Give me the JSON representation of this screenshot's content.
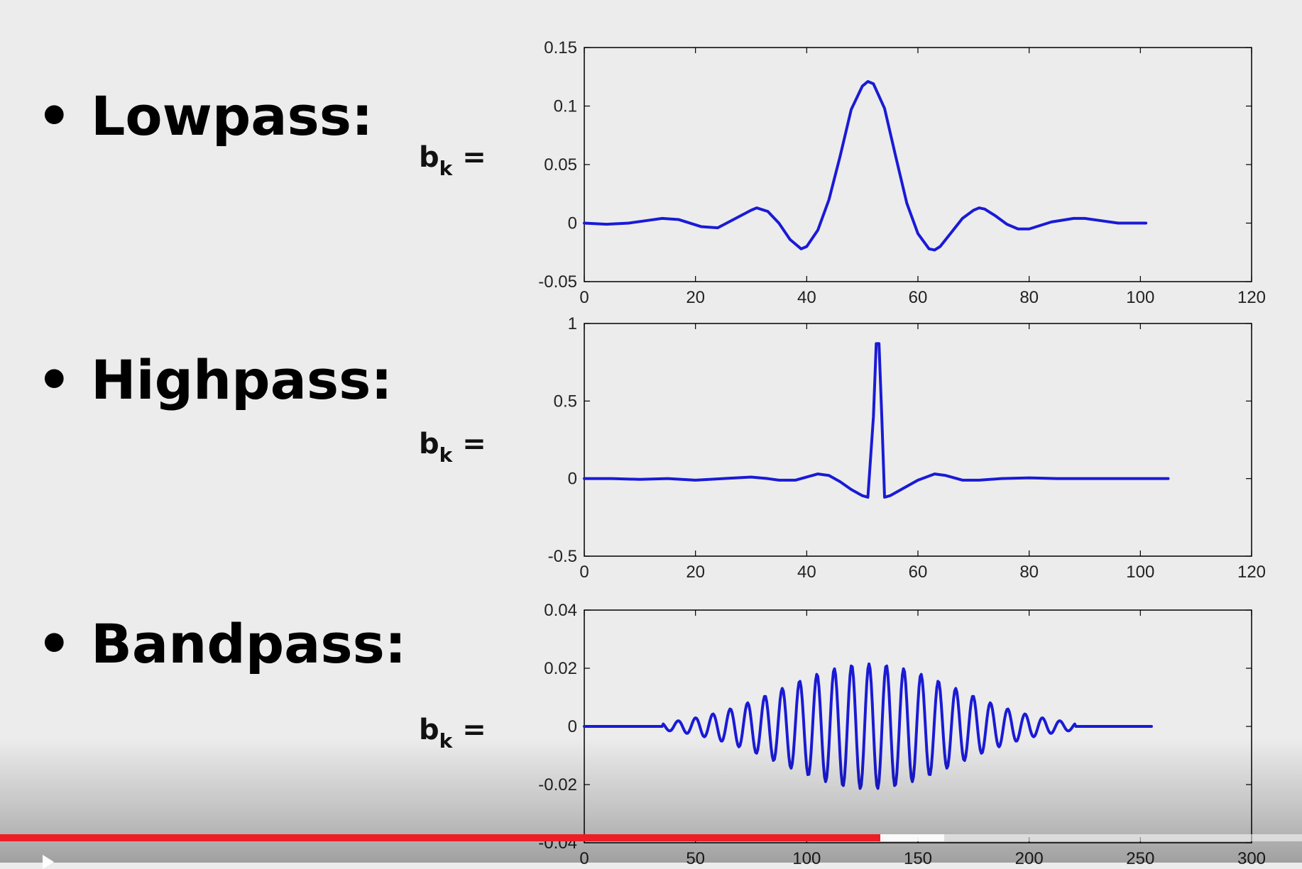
{
  "rows": [
    {
      "bullet": "•",
      "heading": "Lowpass:",
      "coef_base": "b",
      "coef_sub": "k",
      "coef_eq": "="
    },
    {
      "bullet": "•",
      "heading": "Highpass:",
      "coef_base": "b",
      "coef_sub": "k",
      "coef_eq": "="
    },
    {
      "bullet": "•",
      "heading": "Bandpass:",
      "coef_base": "b",
      "coef_sub": "k",
      "coef_eq": "="
    }
  ],
  "colors": {
    "line": "#1a1ad6",
    "axes": "#000000",
    "background": "#ececec",
    "progress": "#ee1c24"
  },
  "video_player": {
    "progress_fraction": 0.676,
    "buffered_fraction": 0.725,
    "play_icon": "play-icon"
  },
  "chart_data": [
    {
      "type": "line",
      "title": "",
      "xlabel": "",
      "ylabel": "",
      "xlim": [
        0,
        120
      ],
      "ylim": [
        -0.05,
        0.15
      ],
      "xticks": [
        "0",
        "20",
        "40",
        "60",
        "80",
        "100",
        "120"
      ],
      "yticks": [
        "0.15",
        "0.1",
        "0.05",
        "0",
        "-0.05"
      ],
      "xtick_values": [
        0,
        20,
        40,
        60,
        80,
        100,
        120
      ],
      "ytick_values": [
        0.15,
        0.1,
        0.05,
        0,
        -0.05
      ],
      "grid": false,
      "series": [
        {
          "x": [
            0,
            4,
            8,
            11,
            14,
            17,
            21,
            24,
            28,
            30,
            31,
            33,
            35,
            37,
            39,
            40,
            42,
            44,
            46,
            48,
            50,
            51,
            52,
            54,
            56,
            58,
            60,
            62,
            63,
            64,
            66,
            68,
            70,
            71,
            72,
            74,
            76,
            78,
            80,
            84,
            88,
            90,
            93,
            96,
            101
          ],
          "y": [
            0,
            -0.001,
            0,
            0.002,
            0.004,
            0.003,
            -0.003,
            -0.004,
            0.006,
            0.011,
            0.013,
            0.01,
            0,
            -0.014,
            -0.022,
            -0.02,
            -0.006,
            0.02,
            0.057,
            0.097,
            0.117,
            0.121,
            0.119,
            0.098,
            0.057,
            0.017,
            -0.009,
            -0.022,
            -0.023,
            -0.02,
            -0.008,
            0.004,
            0.011,
            0.013,
            0.012,
            0.006,
            -0.001,
            -0.005,
            -0.005,
            0.001,
            0.004,
            0.004,
            0.002,
            0,
            0
          ]
        }
      ]
    },
    {
      "type": "line",
      "title": "",
      "xlabel": "",
      "ylabel": "",
      "xlim": [
        0,
        120
      ],
      "ylim": [
        -0.5,
        1
      ],
      "xticks": [
        "0",
        "20",
        "40",
        "60",
        "80",
        "100",
        "120"
      ],
      "yticks": [
        "1",
        "0.5",
        "0",
        "-0.5"
      ],
      "xtick_values": [
        0,
        20,
        40,
        60,
        80,
        100,
        120
      ],
      "ytick_values": [
        1,
        0.5,
        0,
        -0.5
      ],
      "grid": false,
      "series": [
        {
          "x": [
            0,
            5,
            10,
            15,
            20,
            25,
            30,
            33,
            35,
            38,
            40,
            42,
            44,
            46,
            48,
            50,
            51,
            52,
            52.5,
            53,
            53.5,
            54,
            55,
            57,
            60,
            63,
            65,
            68,
            71,
            75,
            80,
            85,
            90,
            95,
            100,
            105
          ],
          "y": [
            0,
            0,
            -0.005,
            0,
            -0.01,
            0,
            0.01,
            0,
            -0.01,
            -0.01,
            0.01,
            0.03,
            0.02,
            -0.02,
            -0.07,
            -0.11,
            -0.12,
            0.4,
            0.87,
            0.87,
            0.4,
            -0.12,
            -0.11,
            -0.07,
            -0.01,
            0.03,
            0.02,
            -0.01,
            -0.01,
            0,
            0.005,
            0,
            0,
            0,
            0,
            0
          ]
        }
      ]
    },
    {
      "type": "line",
      "title": "",
      "xlabel": "",
      "ylabel": "",
      "xlim": [
        0,
        300
      ],
      "ylim": [
        -0.04,
        0.04
      ],
      "xticks": [
        "0",
        "50",
        "100",
        "150",
        "200",
        "250",
        "300"
      ],
      "yticks": [
        "0.04",
        "0.02",
        "0",
        "-0.02",
        "-0.04"
      ],
      "xtick_values": [
        0,
        50,
        100,
        150,
        200,
        250,
        300
      ],
      "ytick_values": [
        0.04,
        0.02,
        0,
        -0.02,
        -0.04
      ],
      "grid": false,
      "series": [
        {
          "generator": "modulated_cosine",
          "x_start": 0,
          "x_end": 255,
          "center": 128,
          "half_width": 58,
          "amplitude": 0.0215,
          "period": 7.8
        }
      ]
    }
  ]
}
